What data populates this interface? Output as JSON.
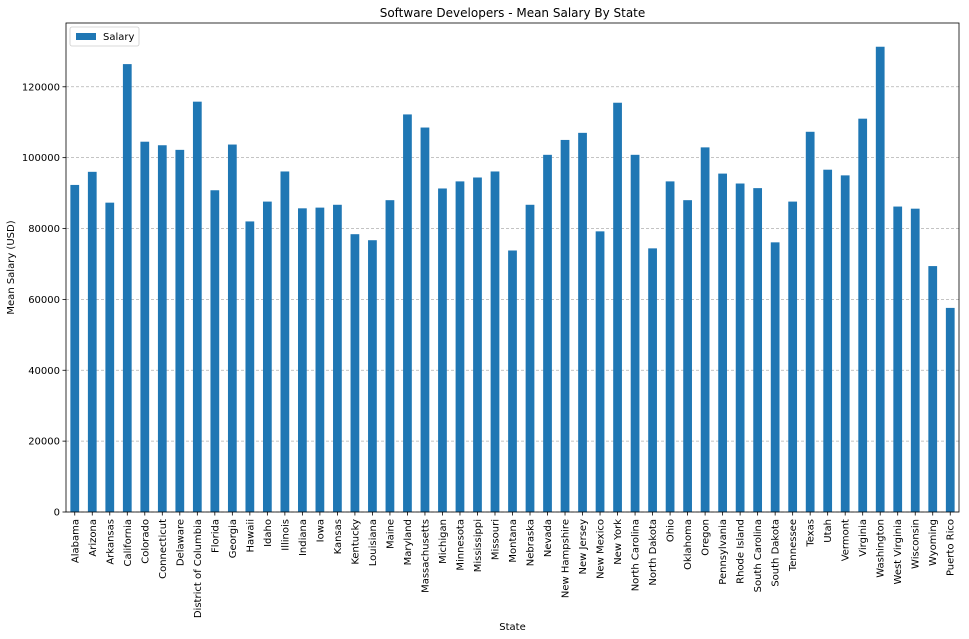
{
  "chart_data": {
    "type": "bar",
    "title": "Software Developers - Mean Salary By State",
    "xlabel": "State",
    "ylabel": "Mean Salary (USD)",
    "ylim": [
      0,
      138000
    ],
    "yticks": [
      0,
      20000,
      40000,
      60000,
      80000,
      100000,
      120000
    ],
    "grid": "y-dashed",
    "legend_position": "top-left",
    "bar_color": "#1f77b4",
    "categories": [
      "Alabama",
      "Arizona",
      "Arkansas",
      "California",
      "Colorado",
      "Connecticut",
      "Delaware",
      "District of Columbia",
      "Florida",
      "Georgia",
      "Hawaii",
      "Idaho",
      "Illinois",
      "Indiana",
      "Iowa",
      "Kansas",
      "Kentucky",
      "Louisiana",
      "Maine",
      "Maryland",
      "Massachusetts",
      "Michigan",
      "Minnesota",
      "Mississippi",
      "Missouri",
      "Montana",
      "Nebraska",
      "Nevada",
      "New Hampshire",
      "New Jersey",
      "New Mexico",
      "New York",
      "North Carolina",
      "North Dakota",
      "Ohio",
      "Oklahoma",
      "Oregon",
      "Pennsylvania",
      "Rhode Island",
      "South Carolina",
      "South Dakota",
      "Tennessee",
      "Texas",
      "Utah",
      "Vermont",
      "Virginia",
      "Washington",
      "West Virginia",
      "Wisconsin",
      "Wyoming",
      "Puerto Rico"
    ],
    "series": [
      {
        "name": "Salary",
        "values": [
          92300,
          96000,
          87300,
          126400,
          104500,
          103500,
          102200,
          115800,
          90800,
          103700,
          82000,
          87600,
          96100,
          85700,
          85900,
          86700,
          78400,
          76700,
          88000,
          112200,
          108500,
          91300,
          93300,
          94400,
          96100,
          73800,
          86700,
          100800,
          105000,
          107000,
          79200,
          115500,
          100800,
          74400,
          93300,
          88000,
          102900,
          95500,
          92700,
          91400,
          76100,
          87600,
          107300,
          96600,
          95000,
          111000,
          131300,
          86200,
          85600,
          69400,
          57600
        ]
      }
    ]
  }
}
